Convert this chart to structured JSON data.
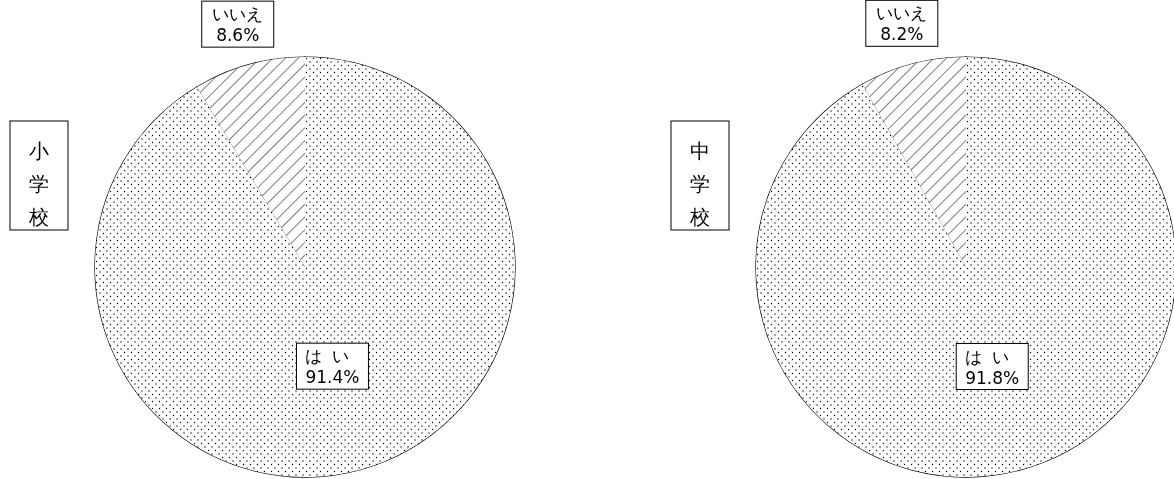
{
  "chart_data": [
    {
      "type": "pie",
      "title": "小学校",
      "categories": [
        "はい",
        "いいえ"
      ],
      "values": [
        91.4,
        8.6
      ],
      "value_labels": [
        "91.4%",
        "8.6%"
      ],
      "colors": [
        "#ffffff",
        "#ffffff"
      ]
    },
    {
      "type": "pie",
      "title": "中学校",
      "categories": [
        "はい",
        "いいえ"
      ],
      "values": [
        91.8,
        8.2
      ],
      "value_labels": [
        "91.8%",
        "8.2%"
      ],
      "colors": [
        "#ffffff",
        "#ffffff"
      ]
    }
  ]
}
